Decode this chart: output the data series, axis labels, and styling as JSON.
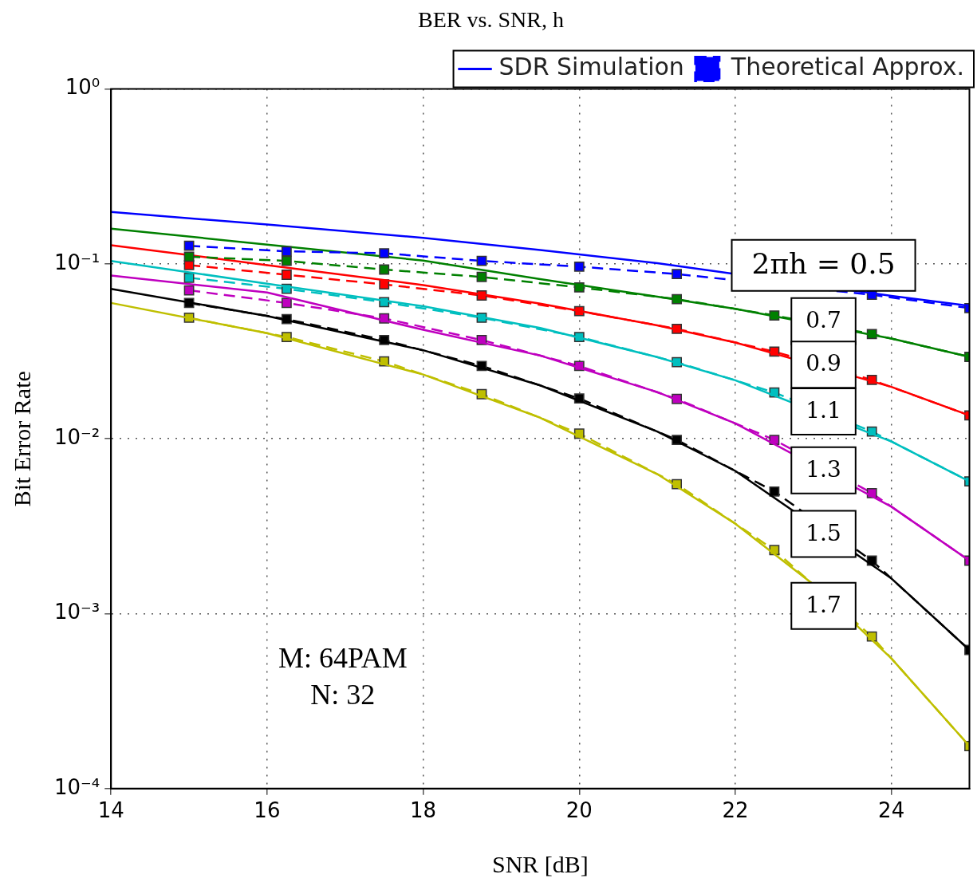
{
  "chart_data": {
    "type": "line",
    "title": "BER vs. SNR, h",
    "xlabel": "SNR [dB]",
    "ylabel": "Bit Error Rate",
    "xlim": [
      14,
      25
    ],
    "xticks": [
      14,
      16,
      18,
      20,
      22,
      24
    ],
    "ylim": [
      0.0001,
      1
    ],
    "yticks": [
      {
        "value": 0.0001,
        "label": "10⁻⁴"
      },
      {
        "value": 0.001,
        "label": "10⁻³"
      },
      {
        "value": 0.01,
        "label": "10⁻²"
      },
      {
        "value": 0.1,
        "label": "10⁻¹"
      },
      {
        "value": 1,
        "label": "10⁰"
      }
    ],
    "log": "y",
    "grid": true,
    "legend": "top right",
    "series": [
      {
        "name": "SDR Simulation",
        "color": "#0000ff",
        "line_style": "solid",
        "marker": "none",
        "x": [
          14,
          16,
          18,
          19.5,
          21,
          22,
          23,
          24,
          25
        ],
        "values": [
          0.198,
          0.168,
          0.141,
          0.12,
          0.101,
          null,
          null,
          0.0657,
          0.0575
        ]
      },
      {
        "name": "Theoretical Approx.",
        "color": "#0000ff",
        "line_style": "dashed",
        "marker": "square",
        "x": [
          15,
          16.25,
          17.5,
          18.75,
          20,
          21.25,
          22.5,
          23.75,
          25
        ],
        "values": [
          0.127,
          0.118,
          0.115,
          0.104,
          0.0964,
          0.0875,
          null,
          0.0666,
          0.0559
        ]
      },
      {
        "color": "#008000",
        "line_style": "solid",
        "marker": "none",
        "x": [
          14,
          16,
          18,
          19.5,
          21,
          22,
          23,
          24,
          25
        ],
        "values": [
          0.159,
          0.129,
          0.1045,
          0.0818,
          0.0649,
          0.0553,
          null,
          0.0374,
          0.0294
        ]
      },
      {
        "color": "#008000",
        "line_style": "dashed",
        "marker": "square",
        "x": [
          15,
          16.25,
          17.5,
          18.75,
          20,
          21.25,
          22.5,
          23.75,
          25
        ],
        "values": [
          0.11,
          0.104,
          0.0928,
          0.0842,
          0.0734,
          0.0629,
          0.0507,
          0.0397,
          0.0294
        ]
      },
      {
        "color": "#ff0000",
        "line_style": "solid",
        "marker": "none",
        "x": [
          14,
          16,
          18,
          19.5,
          21,
          22,
          23,
          24,
          25
        ],
        "values": [
          0.128,
          0.0984,
          0.0757,
          0.0592,
          0.0445,
          0.0355,
          null,
          0.0198,
          0.0136
        ]
      },
      {
        "color": "#ff0000",
        "line_style": "dashed",
        "marker": "square",
        "x": [
          15,
          16.25,
          17.5,
          18.75,
          20,
          21.25,
          22.5,
          23.75,
          25
        ],
        "values": [
          0.0984,
          0.0867,
          0.0763,
          0.066,
          0.0537,
          0.0425,
          0.0315,
          0.0217,
          0.0136
        ]
      },
      {
        "color": "#00bfbf",
        "line_style": "solid",
        "marker": "none",
        "x": [
          14,
          16,
          18,
          19.5,
          21,
          22,
          23,
          24,
          25
        ],
        "values": [
          0.104,
          0.0771,
          0.0573,
          0.043,
          0.0293,
          0.0216,
          null,
          0.00964,
          0.00571
        ]
      },
      {
        "color": "#00bfbf",
        "line_style": "dashed",
        "marker": "square",
        "x": [
          15,
          16.25,
          17.5,
          18.75,
          20,
          21.25,
          22.5,
          23.75,
          25
        ],
        "values": [
          0.0833,
          0.072,
          0.0604,
          0.0492,
          0.0382,
          0.0274,
          0.0184,
          0.011,
          0.00571
        ]
      },
      {
        "color": "#bf00bf",
        "line_style": "solid",
        "marker": "none",
        "x": [
          14,
          16,
          18,
          19.5,
          21,
          22,
          23,
          24,
          25
        ],
        "values": [
          0.0858,
          0.0686,
          0.042,
          0.0299,
          0.0185,
          0.01225,
          null,
          0.00409,
          0.00201
        ]
      },
      {
        "color": "#bf00bf",
        "line_style": "dashed",
        "marker": "square",
        "x": [
          15,
          16.25,
          17.5,
          18.75,
          20,
          21.25,
          22.5,
          23.75,
          25
        ],
        "values": [
          0.0706,
          0.0598,
          0.0488,
          0.0367,
          0.0261,
          0.0169,
          0.00986,
          0.00489,
          0.00201
        ]
      },
      {
        "color": "#000000",
        "line_style": "solid",
        "marker": "none",
        "x": [
          14,
          16,
          18,
          19.5,
          21,
          22,
          23,
          24,
          25
        ],
        "values": [
          0.072,
          0.0504,
          0.0321,
          0.0202,
          0.011,
          0.00655,
          null,
          0.00159,
          0.00062
        ]
      },
      {
        "color": "#000000",
        "line_style": "dashed",
        "marker": "square",
        "x": [
          15,
          16.25,
          17.5,
          18.75,
          20,
          21.25,
          22.5,
          23.75,
          25
        ],
        "values": [
          0.0598,
          0.0483,
          0.0367,
          0.0261,
          0.017,
          0.00986,
          0.00499,
          0.00201,
          0.00062
        ]
      },
      {
        "color": "#bfbf00",
        "line_style": "solid",
        "marker": "none",
        "x": [
          14,
          16,
          18,
          19.5,
          21,
          22,
          23,
          24,
          25
        ],
        "values": [
          0.0598,
          0.0402,
          0.0233,
          0.0132,
          0.00628,
          0.00327,
          0.00147,
          0.000555,
          0.000175
        ]
      },
      {
        "color": "#bfbf00",
        "line_style": "dashed",
        "marker": "square",
        "x": [
          15,
          16.25,
          17.5,
          18.75,
          20,
          21.25,
          22.5,
          23.75,
          25
        ],
        "values": [
          0.0492,
          0.0382,
          0.0277,
          0.018,
          0.0107,
          0.0055,
          0.00231,
          0.00074,
          0.000175
        ]
      }
    ],
    "annotations": [
      "2πh = 0.5",
      "0.7",
      "0.9",
      "1.1",
      "1.3",
      "1.5",
      "1.7",
      "M: 64PAM",
      "N: 32"
    ]
  }
}
